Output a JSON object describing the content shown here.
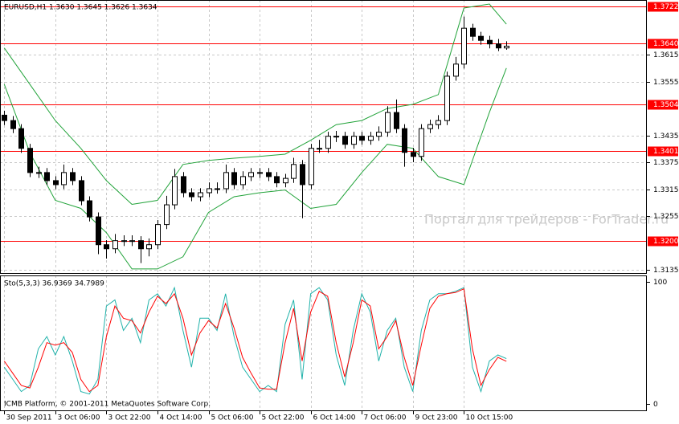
{
  "chart_data": [
    {
      "type": "candlestick",
      "title": "EURUSD,H1  1.3630 1.3645 1.3626 1.3634",
      "open": [
        1.348,
        1.3468,
        1.345,
        1.3406,
        1.3352,
        1.3352,
        1.3334,
        1.3325,
        1.3352,
        1.3334,
        1.3289,
        1.3253,
        1.3191,
        1.3182,
        1.32,
        1.32,
        1.32,
        1.3182,
        1.3191,
        1.3236,
        1.328,
        1.3343,
        1.3307,
        1.3298,
        1.3307,
        1.3316,
        1.3316,
        1.3352,
        1.3325,
        1.3343,
        1.3352,
        1.3352,
        1.3343,
        1.3329,
        1.3339,
        1.337,
        1.3325,
        1.3406,
        1.3406,
        1.3433,
        1.3433,
        1.3415,
        1.3433,
        1.3424,
        1.3433,
        1.3442,
        1.3486,
        1.345,
        1.3397,
        1.3388,
        1.345,
        1.3459,
        1.3468,
        1.3567,
        1.3594,
        1.3674,
        1.3656,
        1.3647,
        1.3639,
        1.363
      ],
      "high": [
        1.349,
        1.3478,
        1.346,
        1.3416,
        1.3365,
        1.3362,
        1.3344,
        1.337,
        1.3362,
        1.3344,
        1.3299,
        1.3263,
        1.3201,
        1.3215,
        1.3212,
        1.3212,
        1.321,
        1.3205,
        1.3246,
        1.33,
        1.336,
        1.3353,
        1.3317,
        1.3317,
        1.333,
        1.333,
        1.337,
        1.3362,
        1.3355,
        1.3362,
        1.3362,
        1.3362,
        1.3353,
        1.3349,
        1.3385,
        1.338,
        1.3416,
        1.3425,
        1.3443,
        1.3445,
        1.3443,
        1.3443,
        1.3443,
        1.3443,
        1.3455,
        1.35,
        1.3515,
        1.346,
        1.3407,
        1.346,
        1.347,
        1.348,
        1.3577,
        1.361,
        1.37,
        1.3684,
        1.3666,
        1.3657,
        1.365,
        1.3645
      ],
      "low": [
        1.3458,
        1.344,
        1.3396,
        1.3342,
        1.334,
        1.3324,
        1.3315,
        1.3315,
        1.3324,
        1.3279,
        1.3243,
        1.317,
        1.316,
        1.3172,
        1.3188,
        1.3188,
        1.315,
        1.3165,
        1.3181,
        1.3226,
        1.327,
        1.3297,
        1.3288,
        1.3288,
        1.3297,
        1.3305,
        1.3306,
        1.3315,
        1.3315,
        1.3333,
        1.334,
        1.3333,
        1.3319,
        1.3319,
        1.3329,
        1.325,
        1.3315,
        1.3396,
        1.3396,
        1.342,
        1.3405,
        1.3405,
        1.3414,
        1.3414,
        1.3423,
        1.3432,
        1.344,
        1.3365,
        1.3375,
        1.3378,
        1.344,
        1.3449,
        1.3458,
        1.3557,
        1.3584,
        1.3646,
        1.3637,
        1.3629,
        1.3623,
        1.3626
      ],
      "close": [
        1.3468,
        1.345,
        1.3406,
        1.3352,
        1.3352,
        1.3334,
        1.3325,
        1.3352,
        1.3334,
        1.3289,
        1.3253,
        1.3191,
        1.3182,
        1.32,
        1.32,
        1.32,
        1.3182,
        1.3191,
        1.3236,
        1.328,
        1.3343,
        1.3307,
        1.3298,
        1.3307,
        1.3316,
        1.3316,
        1.3352,
        1.3325,
        1.3343,
        1.3352,
        1.3352,
        1.3343,
        1.3329,
        1.3339,
        1.337,
        1.3325,
        1.3406,
        1.3406,
        1.3433,
        1.3433,
        1.3415,
        1.3433,
        1.3424,
        1.3433,
        1.3442,
        1.3486,
        1.345,
        1.3397,
        1.3388,
        1.345,
        1.3459,
        1.3468,
        1.3567,
        1.3594,
        1.3674,
        1.3656,
        1.3647,
        1.3639,
        1.363,
        1.3634
      ],
      "upper_band": {
        "color": "#22a33a",
        "x": [
          0,
          3,
          6,
          9,
          12,
          15,
          18,
          21,
          24,
          27,
          30,
          33,
          36,
          39,
          42,
          45,
          48,
          51,
          54,
          57,
          59
        ],
        "values": [
          1.363,
          1.3549,
          1.3468,
          1.3406,
          1.3334,
          1.3281,
          1.329,
          1.337,
          1.3379,
          1.3384,
          1.3388,
          1.3393,
          1.3424,
          1.3459,
          1.3468,
          1.3495,
          1.3504,
          1.3526,
          1.3719,
          1.3728,
          1.3683
        ]
      },
      "lower_band": {
        "color": "#22a33a",
        "x": [
          0,
          3,
          6,
          9,
          12,
          15,
          18,
          21,
          24,
          27,
          30,
          33,
          36,
          39,
          42,
          45,
          48,
          51,
          54,
          57,
          59
        ],
        "values": [
          1.3549,
          1.3397,
          1.329,
          1.3272,
          1.3218,
          1.3137,
          1.3137,
          1.3164,
          1.3263,
          1.3298,
          1.3307,
          1.3313,
          1.3272,
          1.3281,
          1.3352,
          1.3415,
          1.3406,
          1.3343,
          1.3325,
          1.3486,
          1.3585
        ]
      },
      "levels": [
        1.3722,
        {
          "value": 1.364,
          "label": "1.3640"
        },
        1.3504,
        1.3401,
        {
          "value": 1.32,
          "label": "1.3200"
        }
      ],
      "levels_color": "#ff0000",
      "xlim": [
        -0.5,
        75.5
      ],
      "xticks": [
        {
          "value": 0,
          "label": "30 Sep 2011"
        },
        {
          "value": 6,
          "label": "3 Oct 06:00"
        },
        {
          "value": 12,
          "label": "3 Oct 22:00"
        },
        {
          "value": 18,
          "label": "4 Oct 14:00"
        },
        {
          "value": 24,
          "label": "5 Oct 06:00"
        },
        {
          "value": 30,
          "label": "5 Oct 22:00"
        },
        {
          "value": 36,
          "label": "6 Oct 14:00"
        },
        {
          "value": 42,
          "label": "7 Oct 06:00"
        },
        {
          "value": 48,
          "label": "9 Oct 23:00"
        },
        {
          "value": 54,
          "label": "10 Oct 15:00"
        }
      ],
      "ylim": [
        1.3126,
        1.3737
      ],
      "yticks": [
        1.3615,
        1.3555,
        1.3435,
        1.3375,
        1.3315,
        1.3255,
        1.3135
      ],
      "grid": true,
      "watermark": "Портал для трейдеров - ForTrader.ru"
    },
    {
      "type": "line",
      "title": "Sto(5,3,3) 36.9369 34.7989",
      "ylim": [
        -6,
        105
      ],
      "yticks": [
        0,
        100
      ],
      "annotation": "ICMB Platform, © 2001-2011 MetaQuotes Software Corp.",
      "series": [
        {
          "color": "#20b2aa",
          "values": [
            30,
            20,
            10,
            15,
            45,
            55,
            40,
            55,
            35,
            10,
            8,
            20,
            80,
            85,
            60,
            70,
            50,
            85,
            90,
            80,
            95,
            60,
            30,
            70,
            70,
            60,
            90,
            55,
            30,
            20,
            10,
            15,
            10,
            65,
            85,
            20,
            90,
            95,
            85,
            40,
            15,
            60,
            90,
            75,
            35,
            60,
            70,
            30,
            10,
            60,
            85,
            90,
            90,
            92,
            95,
            30,
            10,
            35,
            40,
            36.9369
          ]
        },
        {
          "color": "#ff0000",
          "values": [
            35,
            25,
            15,
            13,
            30,
            50,
            48,
            50,
            42,
            20,
            10,
            15,
            55,
            80,
            70,
            68,
            58,
            75,
            88,
            82,
            90,
            70,
            40,
            58,
            68,
            62,
            82,
            62,
            38,
            25,
            13,
            12,
            12,
            50,
            78,
            35,
            75,
            92,
            88,
            50,
            22,
            50,
            85,
            80,
            45,
            55,
            68,
            38,
            15,
            48,
            78,
            88,
            90,
            91,
            94,
            45,
            15,
            28,
            38,
            34.7989
          ]
        }
      ]
    }
  ]
}
